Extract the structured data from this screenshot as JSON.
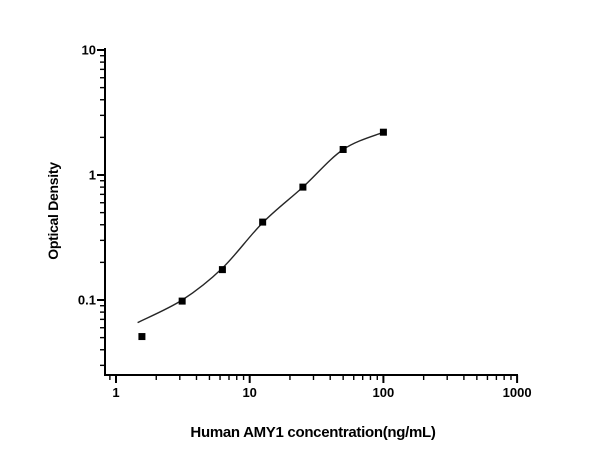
{
  "figure": {
    "background_color": "#ffffff",
    "axis_color": "#000000",
    "text_color": "#000000",
    "curve_color": "#262626",
    "marker_color": "#000000"
  },
  "chart_data": {
    "type": "scatter",
    "title": "",
    "xlabel": "Human AMY1 concentration(ng/mL)",
    "ylabel": "Optical Density",
    "x_scale": "log",
    "y_scale": "log",
    "xlim": [
      0.83,
      1016
    ],
    "ylim": [
      0.0255,
      10.4
    ],
    "x_ticks": [
      1,
      10,
      100,
      1000
    ],
    "x_tick_labels": [
      "1",
      "10",
      "100",
      "1000"
    ],
    "y_ticks": [
      0.1,
      1,
      10
    ],
    "y_tick_labels": [
      "0.1",
      "1",
      "10"
    ],
    "grid": false,
    "legend": false,
    "series": [
      {
        "name": "standard-curve-points",
        "marker": "filled-square",
        "x": [
          1.5625,
          3.125,
          6.25,
          12.5,
          25,
          50,
          100
        ],
        "y": [
          0.051,
          0.098,
          0.175,
          0.42,
          0.8,
          1.6,
          2.2
        ]
      }
    ],
    "fit_curve": {
      "name": "4pl-fit-line",
      "x": [
        1.45,
        3.125,
        6.25,
        12.5,
        25,
        50,
        100
      ],
      "y": [
        0.066,
        0.1,
        0.18,
        0.415,
        0.8,
        1.6,
        2.2
      ]
    }
  }
}
